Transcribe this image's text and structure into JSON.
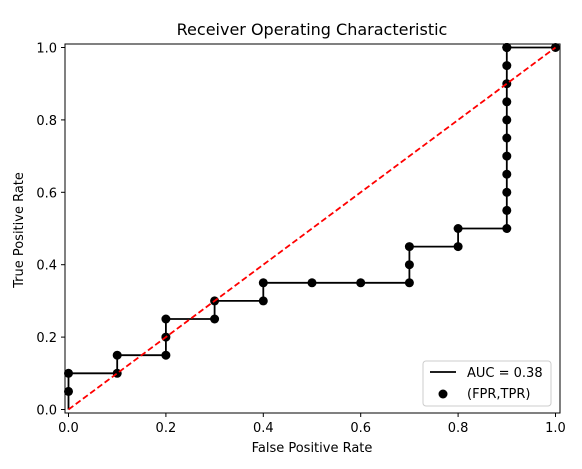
{
  "chart_data": {
    "type": "line",
    "title": "Receiver Operating Characteristic",
    "xlabel": "False Positive Rate",
    "ylabel": "True Positive Rate",
    "xlim": [
      0.0,
      1.0
    ],
    "ylim": [
      0.0,
      1.0
    ],
    "xticks": [
      0.0,
      0.2,
      0.4,
      0.6,
      0.8,
      1.0
    ],
    "yticks": [
      0.0,
      0.2,
      0.4,
      0.6,
      0.8,
      1.0
    ],
    "tick_labels": [
      "0.0",
      "0.2",
      "0.4",
      "0.6",
      "0.8",
      "1.0"
    ],
    "grid": false,
    "legend_position": "bottom-right",
    "series": [
      {
        "name": "AUC = 0.38",
        "type": "step-line",
        "color": "#000000",
        "x": [
          0.0,
          0.0,
          0.0,
          0.1,
          0.1,
          0.1,
          0.2,
          0.2,
          0.2,
          0.2,
          0.3,
          0.3,
          0.3,
          0.4,
          0.4,
          0.5,
          0.6,
          0.7,
          0.7,
          0.7,
          0.7,
          0.8,
          0.8,
          0.9,
          0.9,
          0.9,
          0.9,
          0.9,
          0.9,
          0.9,
          0.9,
          0.9,
          0.9,
          0.9,
          0.9,
          0.9,
          0.9,
          1.0
        ],
        "y": [
          0.0,
          0.05,
          0.1,
          0.1,
          0.1,
          0.15,
          0.15,
          0.15,
          0.2,
          0.25,
          0.25,
          0.25,
          0.3,
          0.3,
          0.35,
          0.35,
          0.35,
          0.35,
          0.4,
          0.45,
          0.45,
          0.45,
          0.5,
          0.5,
          0.5,
          0.55,
          0.6,
          0.65,
          0.7,
          0.75,
          0.8,
          0.85,
          0.9,
          0.95,
          1.0,
          1.0,
          1.0,
          1.0
        ]
      },
      {
        "name": "(FPR,TPR)",
        "type": "scatter",
        "color": "#000000",
        "x": [
          0.0,
          0.0,
          0.1,
          0.1,
          0.2,
          0.2,
          0.2,
          0.3,
          0.3,
          0.4,
          0.4,
          0.5,
          0.6,
          0.7,
          0.7,
          0.7,
          0.8,
          0.8,
          0.9,
          0.9,
          0.9,
          0.9,
          0.9,
          0.9,
          0.9,
          0.9,
          0.9,
          0.9,
          0.9,
          0.9,
          0.9,
          1.0
        ],
        "y": [
          0.05,
          0.1,
          0.1,
          0.15,
          0.15,
          0.2,
          0.25,
          0.25,
          0.3,
          0.3,
          0.35,
          0.35,
          0.35,
          0.35,
          0.4,
          0.45,
          0.45,
          0.5,
          0.5,
          0.55,
          0.6,
          0.65,
          0.7,
          0.75,
          0.8,
          0.85,
          0.9,
          0.95,
          1.0,
          1.0,
          1.0,
          1.0
        ]
      },
      {
        "name": "",
        "type": "diagonal",
        "color": "#ff0000",
        "dashed": true,
        "x": [
          0.0,
          1.0
        ],
        "y": [
          0.0,
          1.0
        ]
      }
    ]
  }
}
